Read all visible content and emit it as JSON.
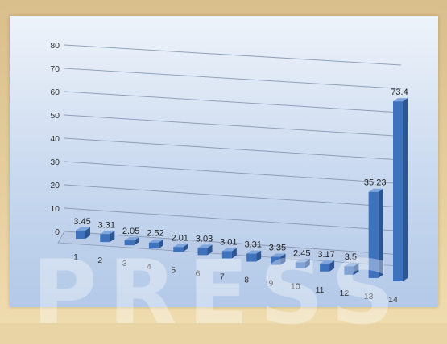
{
  "chart_data": {
    "type": "bar",
    "categories": [
      "1",
      "2",
      "3",
      "4",
      "5",
      "6",
      "7",
      "8",
      "9",
      "10",
      "11",
      "12",
      "13",
      "14"
    ],
    "values": [
      3.45,
      3.31,
      2.05,
      2.52,
      2.01,
      3.03,
      3.01,
      3.31,
      3.35,
      2.45,
      3.17,
      3.5,
      35.23,
      73.4
    ],
    "data_labels": [
      "3.45",
      "3.31",
      "2.05",
      "2.52",
      "2.01",
      "3.03",
      "3.01",
      "3.31",
      "3.35",
      "2.45",
      "3.17",
      "3.5",
      "35.23",
      "73.4"
    ],
    "title": "",
    "xlabel": "",
    "ylabel": "",
    "ylim": [
      0,
      80
    ],
    "yticks": [
      "0",
      "10",
      "20",
      "30",
      "40",
      "50",
      "60",
      "70",
      "80"
    ],
    "grid": true,
    "style": "3d-perspective",
    "colors": {
      "bar_front": "#3f72bd",
      "bar_side": "#2c5593",
      "bar_top": "#7ea6dc",
      "gridline": "#7f8fa8"
    }
  },
  "watermark_text": "PRESS"
}
